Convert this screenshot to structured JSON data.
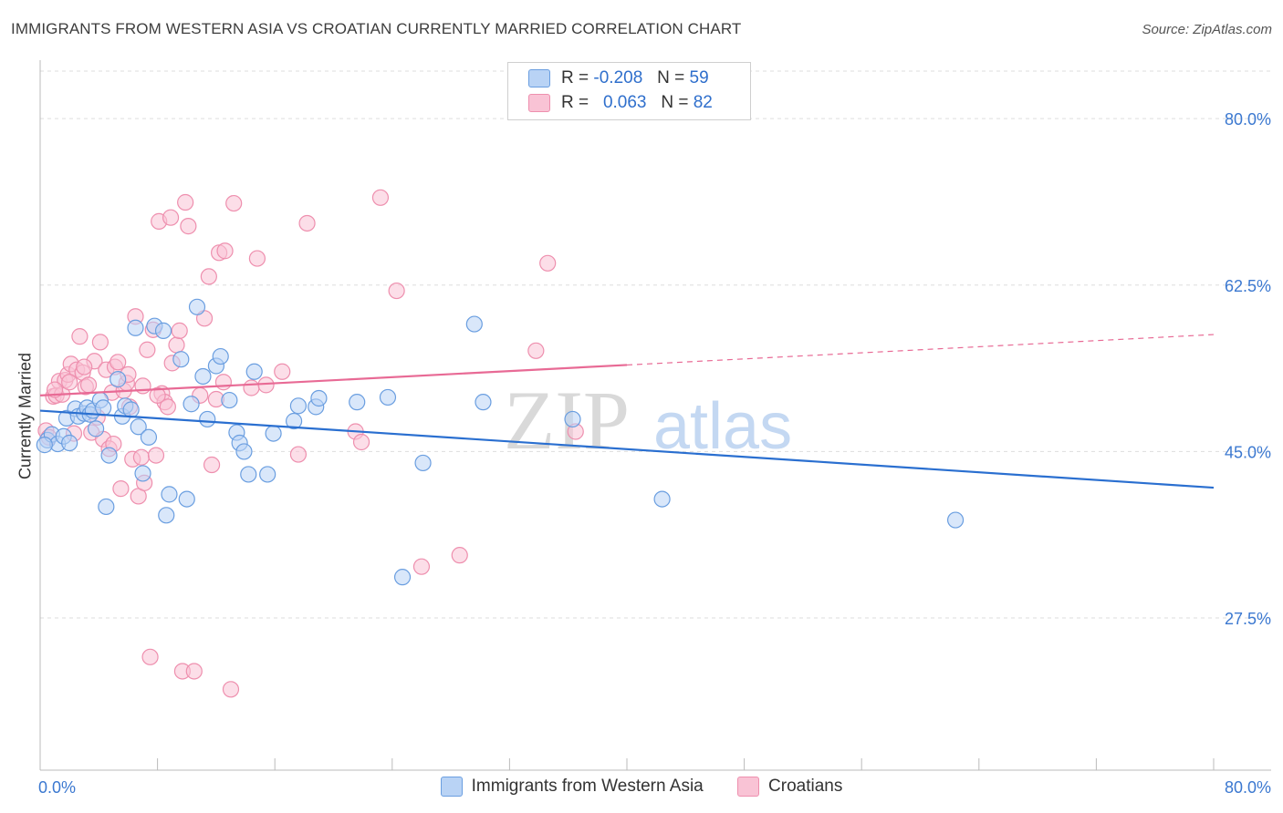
{
  "title": "IMMIGRANTS FROM WESTERN ASIA VS CROATIAN CURRENTLY MARRIED CORRELATION CHART",
  "source": "Source: ZipAtlas.com",
  "watermark": {
    "zip": "ZIP",
    "atlas": "atlas"
  },
  "legend_top": {
    "rows": [
      {
        "r_label": "R =",
        "r_value": "-0.208",
        "n_label": "N =",
        "n_value": "59"
      },
      {
        "r_label": "R =",
        "r_value": "0.063",
        "n_label": "N =",
        "n_value": "82"
      }
    ]
  },
  "colors": {
    "blue_fill": "#b9d3f5",
    "blue_stroke": "#6a9ee0",
    "blue_line": "#2a6fd0",
    "pink_fill": "#f9c3d5",
    "pink_stroke": "#ee8fae",
    "pink_line": "#e86a95",
    "tick_label": "#3b78d0",
    "grid": "#dddddd"
  },
  "chart_data": {
    "type": "scatter",
    "title": "IMMIGRANTS FROM WESTERN ASIA VS CROATIAN CURRENTLY MARRIED CORRELATION CHART",
    "xlabel": "",
    "ylabel": "Currently Married",
    "xlim": [
      0,
      80
    ],
    "ylim": [
      11.5,
      85
    ],
    "x_ticks": [
      "0.0%",
      "80.0%"
    ],
    "y_ticks": [
      {
        "value": 80.0,
        "label": "80.0%"
      },
      {
        "value": 62.5,
        "label": "62.5%"
      },
      {
        "value": 45.0,
        "label": "45.0%"
      },
      {
        "value": 27.5,
        "label": "27.5%"
      }
    ],
    "grid": true,
    "legend_position": "bottom",
    "series": [
      {
        "name": "Immigrants from Western Asia",
        "color": "blue",
        "trend": {
          "x0": 0,
          "y0": 49.3,
          "x1": 80,
          "y1": 41.2,
          "solid_until": 80
        },
        "points": [
          [
            0.5,
            46.2
          ],
          [
            0.8,
            46.8
          ],
          [
            1.2,
            45.8
          ],
          [
            1.6,
            46.6
          ],
          [
            1.8,
            48.5
          ],
          [
            2.0,
            45.9
          ],
          [
            2.4,
            49.5
          ],
          [
            2.6,
            48.7
          ],
          [
            3.0,
            49.0
          ],
          [
            3.2,
            49.6
          ],
          [
            3.4,
            48.9
          ],
          [
            3.6,
            49.3
          ],
          [
            3.8,
            47.4
          ],
          [
            4.1,
            50.4
          ],
          [
            4.3,
            49.6
          ],
          [
            4.5,
            39.2
          ],
          [
            4.7,
            44.6
          ],
          [
            5.3,
            52.6
          ],
          [
            5.6,
            48.7
          ],
          [
            5.8,
            49.8
          ],
          [
            6.2,
            49.4
          ],
          [
            6.5,
            58.0
          ],
          [
            6.7,
            47.6
          ],
          [
            7.0,
            42.7
          ],
          [
            7.4,
            46.5
          ],
          [
            7.8,
            58.2
          ],
          [
            8.4,
            57.7
          ],
          [
            8.6,
            38.3
          ],
          [
            8.8,
            40.5
          ],
          [
            9.6,
            54.7
          ],
          [
            10.0,
            40.0
          ],
          [
            10.3,
            50.0
          ],
          [
            10.7,
            60.2
          ],
          [
            11.1,
            52.9
          ],
          [
            11.4,
            48.4
          ],
          [
            12.0,
            54.0
          ],
          [
            12.3,
            55.0
          ],
          [
            12.9,
            50.4
          ],
          [
            13.4,
            47.0
          ],
          [
            13.6,
            45.9
          ],
          [
            13.9,
            45.0
          ],
          [
            14.2,
            42.6
          ],
          [
            14.6,
            53.4
          ],
          [
            15.5,
            42.6
          ],
          [
            15.9,
            46.9
          ],
          [
            17.3,
            48.2
          ],
          [
            17.6,
            49.8
          ],
          [
            18.8,
            49.7
          ],
          [
            19.0,
            50.6
          ],
          [
            21.6,
            50.2
          ],
          [
            23.7,
            50.7
          ],
          [
            24.7,
            31.8
          ],
          [
            26.1,
            43.8
          ],
          [
            29.6,
            58.4
          ],
          [
            30.2,
            50.2
          ],
          [
            36.3,
            48.4
          ],
          [
            42.4,
            40.0
          ],
          [
            62.4,
            37.8
          ],
          [
            0.3,
            45.7
          ]
        ]
      },
      {
        "name": "Croatians",
        "color": "pink",
        "trend": {
          "x0": 0,
          "y0": 50.9,
          "x1": 80,
          "y1": 57.3,
          "solid_until": 40
        },
        "points": [
          [
            0.4,
            47.2
          ],
          [
            0.6,
            46.5
          ],
          [
            0.9,
            50.8
          ],
          [
            1.1,
            50.9
          ],
          [
            1.3,
            52.4
          ],
          [
            1.5,
            51.0
          ],
          [
            1.7,
            52.5
          ],
          [
            1.9,
            53.1
          ],
          [
            2.1,
            54.2
          ],
          [
            2.3,
            46.9
          ],
          [
            2.5,
            53.6
          ],
          [
            2.7,
            57.1
          ],
          [
            2.9,
            53.3
          ],
          [
            3.1,
            51.8
          ],
          [
            3.3,
            52.0
          ],
          [
            3.5,
            47.0
          ],
          [
            3.7,
            54.5
          ],
          [
            3.9,
            48.6
          ],
          [
            4.1,
            56.5
          ],
          [
            4.3,
            46.3
          ],
          [
            4.5,
            53.6
          ],
          [
            4.7,
            45.3
          ],
          [
            4.9,
            51.2
          ],
          [
            5.1,
            53.9
          ],
          [
            5.3,
            54.4
          ],
          [
            5.5,
            41.1
          ],
          [
            5.7,
            51.4
          ],
          [
            5.9,
            52.2
          ],
          [
            6.1,
            49.7
          ],
          [
            6.3,
            44.2
          ],
          [
            6.5,
            59.2
          ],
          [
            6.7,
            40.3
          ],
          [
            6.9,
            44.4
          ],
          [
            7.1,
            41.7
          ],
          [
            7.3,
            55.7
          ],
          [
            7.5,
            23.4
          ],
          [
            7.7,
            57.8
          ],
          [
            7.9,
            44.6
          ],
          [
            8.1,
            69.2
          ],
          [
            8.3,
            51.1
          ],
          [
            8.5,
            50.2
          ],
          [
            8.7,
            49.7
          ],
          [
            8.9,
            69.6
          ],
          [
            9.3,
            56.2
          ],
          [
            9.5,
            57.7
          ],
          [
            9.7,
            21.9
          ],
          [
            9.9,
            71.2
          ],
          [
            10.1,
            68.7
          ],
          [
            10.5,
            21.9
          ],
          [
            10.9,
            50.9
          ],
          [
            11.2,
            59.0
          ],
          [
            11.5,
            63.4
          ],
          [
            11.7,
            43.6
          ],
          [
            12.0,
            50.5
          ],
          [
            12.2,
            65.9
          ],
          [
            12.6,
            66.1
          ],
          [
            13.0,
            20.0
          ],
          [
            13.2,
            71.1
          ],
          [
            14.4,
            51.7
          ],
          [
            14.8,
            65.3
          ],
          [
            15.4,
            52.0
          ],
          [
            16.5,
            53.4
          ],
          [
            17.6,
            44.7
          ],
          [
            18.2,
            69.0
          ],
          [
            21.5,
            47.1
          ],
          [
            21.9,
            46.0
          ],
          [
            23.2,
            71.7
          ],
          [
            24.3,
            61.9
          ],
          [
            26.0,
            32.9
          ],
          [
            28.6,
            34.1
          ],
          [
            33.8,
            55.6
          ],
          [
            34.6,
            64.8
          ],
          [
            36.5,
            47.1
          ],
          [
            5.0,
            45.8
          ],
          [
            6.0,
            53.1
          ],
          [
            9.0,
            54.3
          ],
          [
            3.0,
            53.9
          ],
          [
            2.0,
            52.3
          ],
          [
            1.0,
            51.5
          ],
          [
            7.0,
            51.9
          ],
          [
            12.5,
            52.3
          ],
          [
            8.0,
            50.9
          ]
        ]
      }
    ]
  }
}
